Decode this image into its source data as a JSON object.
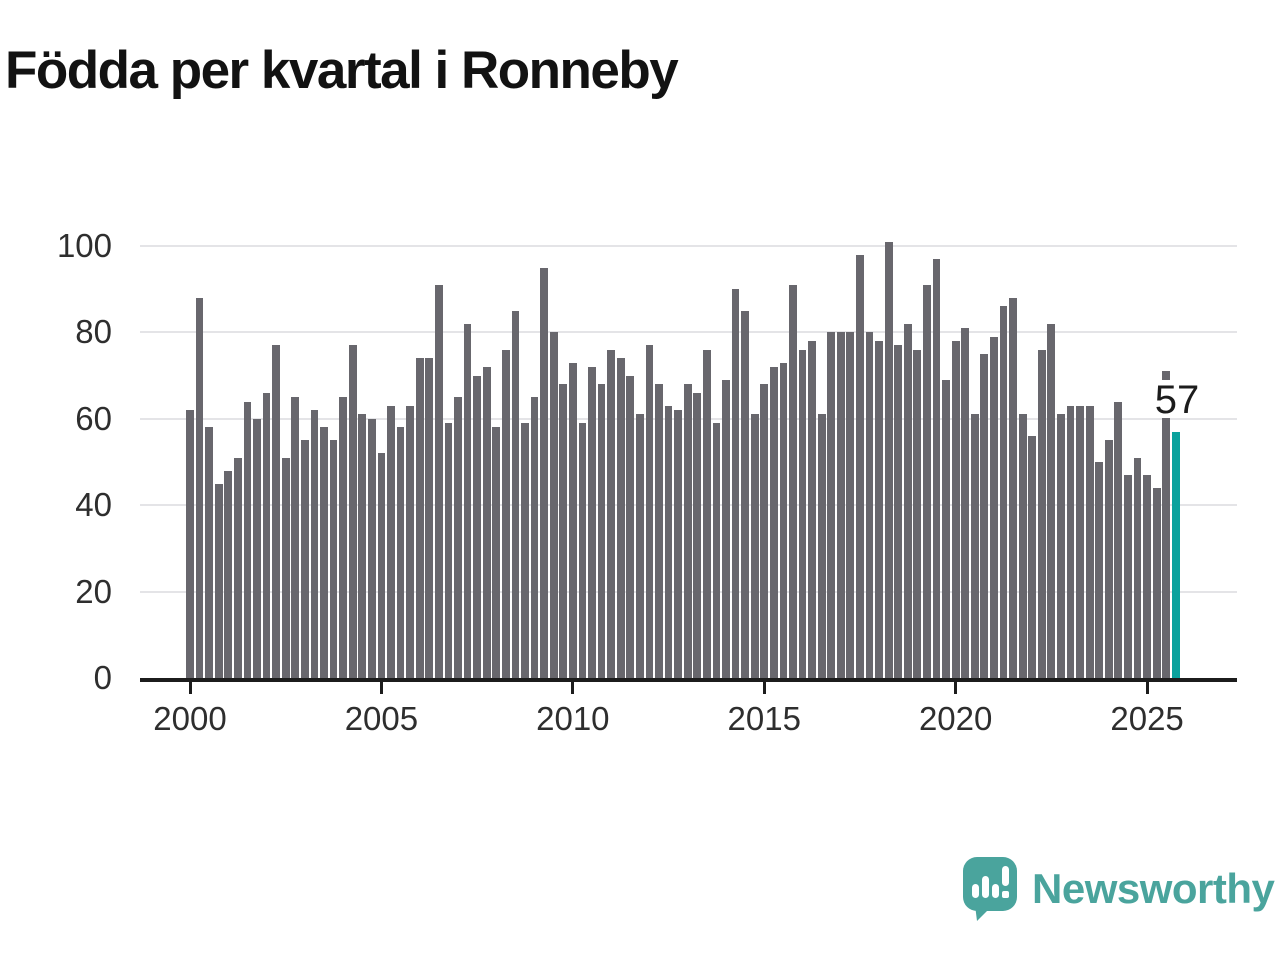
{
  "title": "Födda per kvartal i Ronneby",
  "annotation": {
    "value_label": "57"
  },
  "logo": {
    "brand": "Newsworthy"
  },
  "colors": {
    "bar": "#68676d",
    "highlight": "#0aa29d",
    "grid": "#e4e4e7",
    "axis": "#1c1c1c",
    "tick_text": "#2e2e2e",
    "title_text": "#121212",
    "logo_teal": "#4aa49d"
  },
  "chart_data": {
    "type": "bar",
    "title": "Födda per kvartal i Ronneby",
    "x_unit": "quarter",
    "x_start": "2000-Q1",
    "x_end": "2025-Q4",
    "x_tick_labels": [
      "2000",
      "2005",
      "2010",
      "2015",
      "2020",
      "2025"
    ],
    "y_ticks": [
      0,
      20,
      40,
      60,
      80,
      100
    ],
    "ylim": [
      0,
      100
    ],
    "grid": true,
    "legend": "none",
    "highlight": {
      "index": 103,
      "label": "57"
    },
    "series": [
      {
        "name": "Födda",
        "values": [
          62,
          88,
          58,
          45,
          48,
          51,
          64,
          60,
          66,
          77,
          51,
          65,
          55,
          62,
          58,
          55,
          65,
          77,
          61,
          60,
          52,
          63,
          58,
          63,
          74,
          74,
          91,
          59,
          65,
          82,
          70,
          72,
          58,
          76,
          85,
          59,
          65,
          95,
          80,
          68,
          73,
          59,
          72,
          68,
          76,
          74,
          70,
          61,
          77,
          68,
          63,
          62,
          68,
          66,
          76,
          59,
          69,
          90,
          85,
          61,
          68,
          72,
          73,
          91,
          76,
          78,
          61,
          80,
          80,
          80,
          98,
          80,
          78,
          101,
          77,
          82,
          76,
          91,
          97,
          69,
          78,
          81,
          61,
          75,
          79,
          86,
          88,
          61,
          56,
          76,
          82,
          61,
          63,
          63,
          63,
          50,
          55,
          64,
          47,
          51,
          47,
          44,
          71,
          57
        ]
      }
    ]
  }
}
